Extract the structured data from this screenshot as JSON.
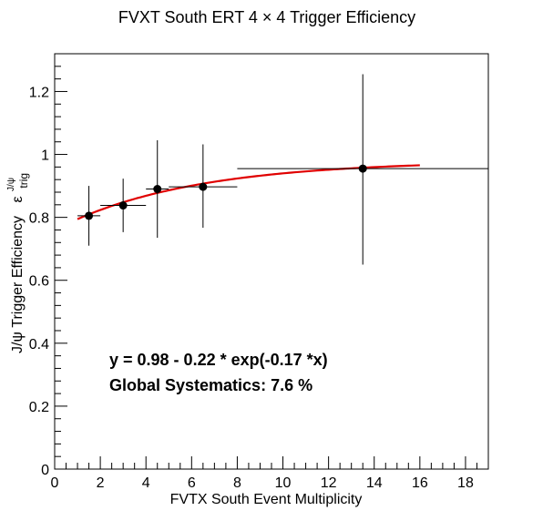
{
  "chart_data": {
    "type": "scatter",
    "title": "FVXT South ERT 4  × 4 Trigger Efficiency",
    "xlabel": "FVTX South Event Multiplicity",
    "ylabel": "J/ψ Trigger Efficiency",
    "ylabel_symbol": "ε",
    "ylabel_superscript": "J/ψ",
    "ylabel_subscript": "trig",
    "xlim": [
      0,
      19
    ],
    "ylim": [
      0,
      1.32
    ],
    "x_ticks": [
      "0",
      "2",
      "4",
      "6",
      "8",
      "10",
      "12",
      "14",
      "16",
      "18"
    ],
    "y_ticks": [
      "0",
      "0.2",
      "0.4",
      "0.6",
      "0.8",
      "1",
      "1.2"
    ],
    "series": [
      {
        "points": [
          {
            "x": 1.5,
            "y": 0.805,
            "xerr": 0.5,
            "yerr_low": 0.095,
            "yerr_high": 0.095
          },
          {
            "x": 3.0,
            "y": 0.838,
            "xerr": 1.0,
            "yerr_low": 0.085,
            "yerr_high": 0.085
          },
          {
            "x": 4.5,
            "y": 0.89,
            "xerr": 0.5,
            "yerr_low": 0.155,
            "yerr_high": 0.155
          },
          {
            "x": 6.5,
            "y": 0.897,
            "xerr": 1.5,
            "yerr_low": 0.13,
            "yerr_high": 0.135
          },
          {
            "x": 13.5,
            "y": 0.955,
            "xerr": 5.5,
            "yerr_low": 0.305,
            "yerr_high": 0.3
          }
        ]
      }
    ],
    "fit": {
      "function": "exp",
      "a": 0.98,
      "b": 0.22,
      "c": 0.17,
      "x_range": [
        1,
        16
      ],
      "color": "#e00000"
    },
    "annotations": [
      "y = 0.98 - 0.22  * exp(-0.17  *x)",
      "Global Systematics: 7.6 %"
    ],
    "marker_color": "#000000",
    "grid": false,
    "legend": "none"
  }
}
